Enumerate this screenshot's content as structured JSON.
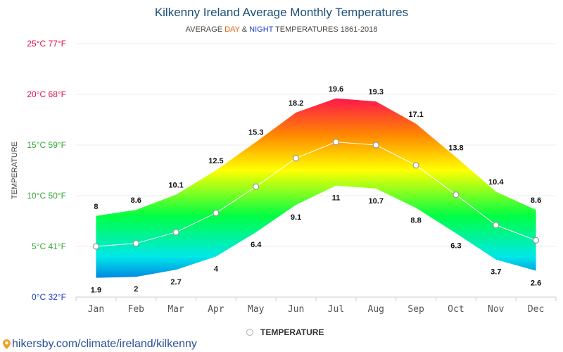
{
  "header": {
    "title": "Kilkenny Ireland Average Monthly Temperatures",
    "subtitle_pre": "AVERAGE ",
    "subtitle_day": "DAY",
    "subtitle_mid": " & ",
    "subtitle_night": "NIGHT",
    "subtitle_post": " TEMPERATURES 1861-2018"
  },
  "legend": {
    "label": "TEMPERATURE"
  },
  "footer": {
    "source": "hikersby.com/climate/ireland/kilkenny"
  },
  "chart_data": {
    "type": "area",
    "title": "Kilkenny Ireland Average Monthly Temperatures",
    "ylabel": "TEMPERATURE",
    "categories": [
      "Jan",
      "Feb",
      "Mar",
      "Apr",
      "May",
      "Jun",
      "Jul",
      "Aug",
      "Sep",
      "Oct",
      "Nov",
      "Dec"
    ],
    "ylim": [
      0,
      25
    ],
    "yticks": [
      {
        "value": 0,
        "label": "0°C 32°F",
        "color": "#1e40c8"
      },
      {
        "value": 5,
        "label": "5°C 41°F",
        "color": "#3aa83a"
      },
      {
        "value": 10,
        "label": "10°C 50°F",
        "color": "#3aa83a"
      },
      {
        "value": 15,
        "label": "15°C 59°F",
        "color": "#3aa83a"
      },
      {
        "value": 20,
        "label": "20°C 68°F",
        "color": "#e0104a"
      },
      {
        "value": 25,
        "label": "25°C 77°F",
        "color": "#e0104a"
      }
    ],
    "series": [
      {
        "name": "day",
        "values": [
          8,
          8.6,
          10.1,
          12.5,
          15.3,
          18.2,
          19.6,
          19.3,
          17.1,
          13.8,
          10.4,
          8.6
        ]
      },
      {
        "name": "night",
        "values": [
          1.9,
          2,
          2.7,
          4,
          6.4,
          9.1,
          11,
          10.7,
          8.8,
          6.3,
          3.7,
          2.6
        ]
      },
      {
        "name": "TEMPERATURE",
        "values": [
          5,
          5.3,
          6.4,
          8.3,
          10.9,
          13.7,
          15.3,
          15,
          13,
          10.1,
          7.1,
          5.6
        ]
      }
    ],
    "grid": true,
    "legend_position": "bottom-center",
    "colors": {
      "hot": "#ff1a4a",
      "warm": "#ffff00",
      "mild": "#00ff44",
      "cool": "#00e8e8",
      "cold": "#0030e0"
    }
  }
}
